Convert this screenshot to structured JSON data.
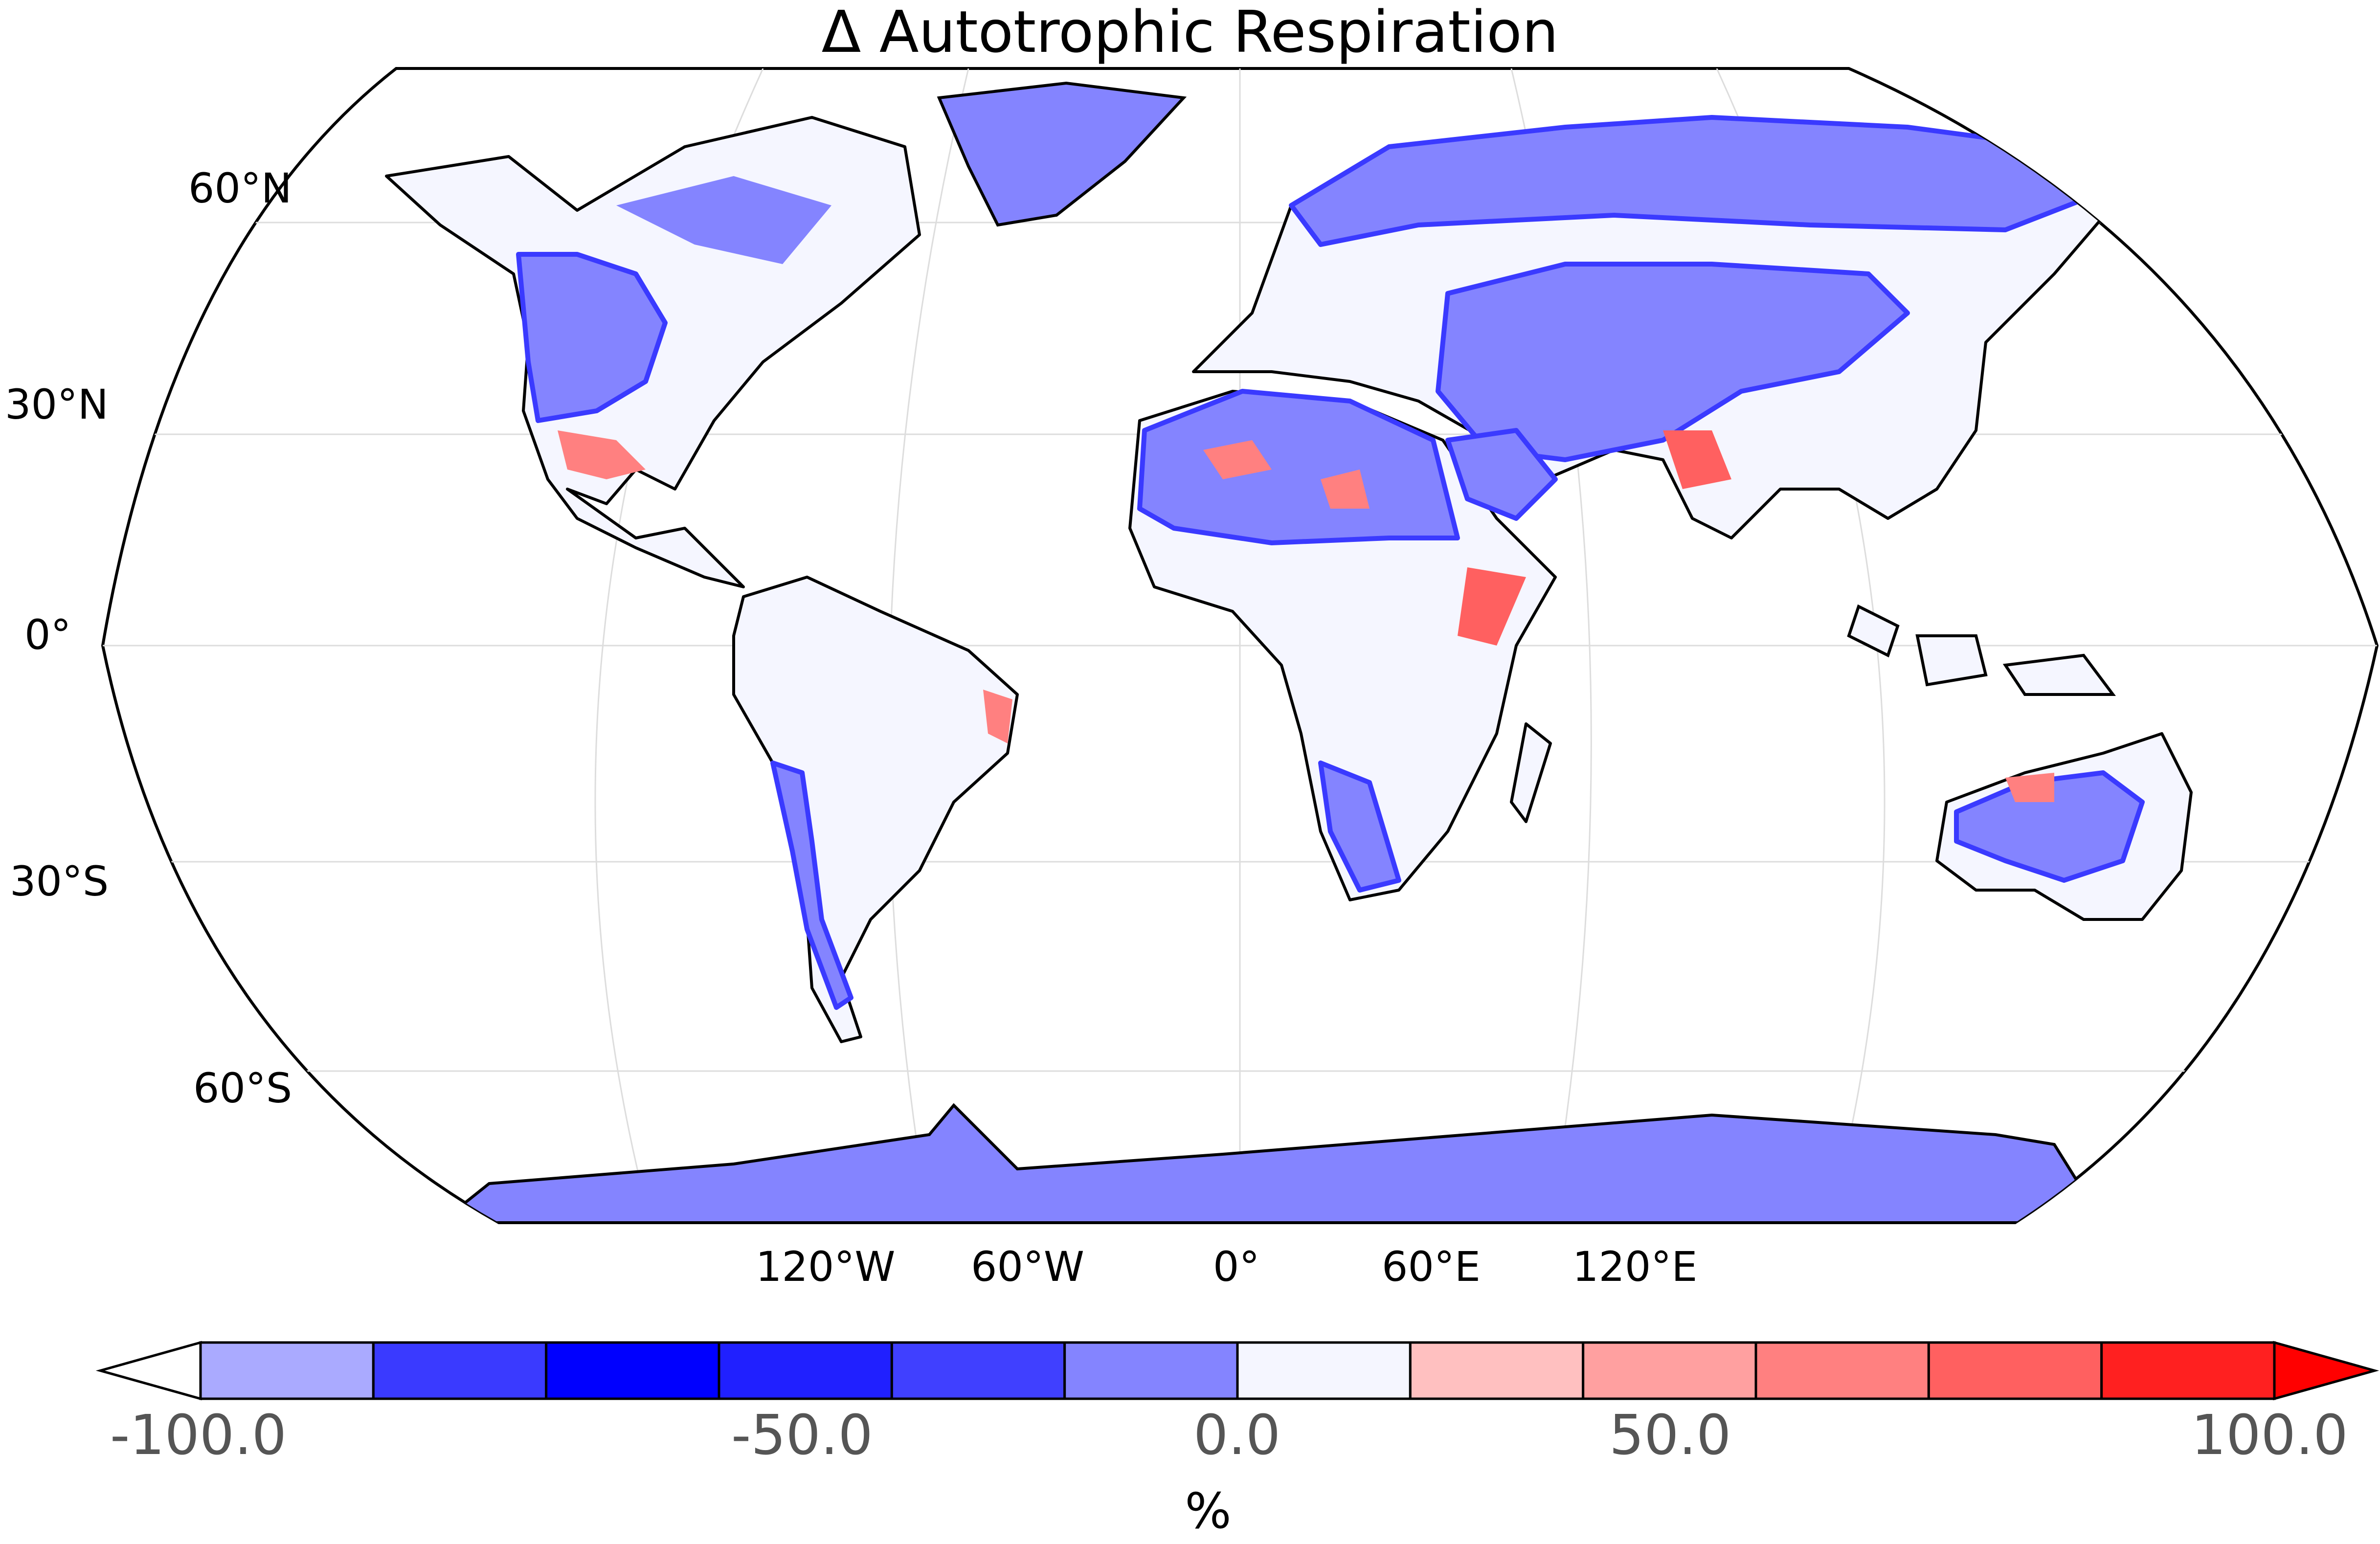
{
  "title": "Δ Autotrophic Respiration",
  "lat_labels": [
    "60°N",
    "30°N",
    "0°",
    "30°S",
    "60°S"
  ],
  "lon_labels": [
    "120°W",
    "60°W",
    "0°",
    "60°E",
    "120°E"
  ],
  "colorbar": {
    "ticks": [
      "-100.0",
      "-50.0",
      "0.0",
      "50.0",
      "100.0"
    ],
    "unit": "%",
    "colors": [
      "#aaaaff",
      "#3a3aff",
      "#0000ff",
      "#2020ff",
      "#4040ff",
      "#8484ff",
      "#f5f6ff",
      "#ffc0c0",
      "#ffa0a0",
      "#ff8080",
      "#ff6060",
      "#ff2020"
    ],
    "under_color": "#ffffff",
    "over_color": "#ff0000"
  },
  "map": {
    "projection": "Robinson",
    "ocean_color": "#ffffff",
    "gridlines": "light grey"
  }
}
